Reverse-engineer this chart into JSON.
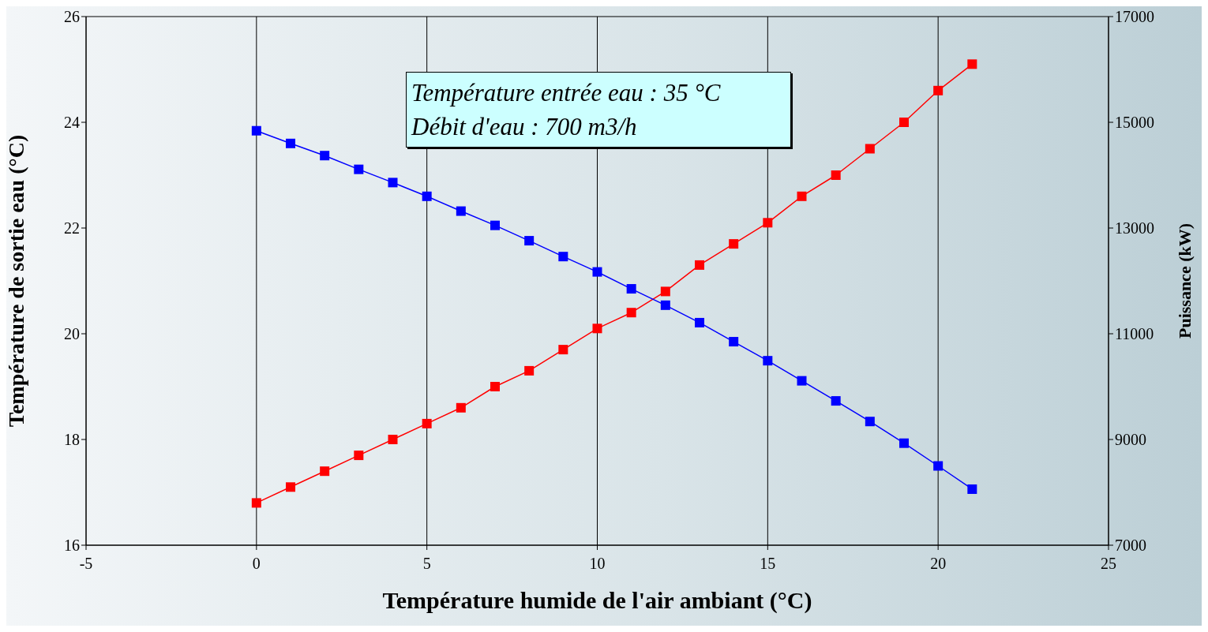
{
  "chart_data": {
    "type": "line",
    "xlabel": "Température humide de l'air ambiant (°C)",
    "ylabel": "Température de sortie eau (°C)",
    "y2label": "Puissance (kW)",
    "annotations": [
      "Température entrée eau : 35 °C",
      "Débit d'eau : 700 m3/h"
    ],
    "x": [
      0,
      1,
      2,
      3,
      4,
      5,
      6,
      7,
      8,
      9,
      10,
      11,
      12,
      13,
      14,
      15,
      16,
      17,
      18,
      19,
      20,
      21
    ],
    "series": [
      {
        "color": "#ff0000",
        "values": [
          16.8,
          17.1,
          17.4,
          17.7,
          18.0,
          18.3,
          18.6,
          19.0,
          19.3,
          19.7,
          20.1,
          20.4,
          20.8,
          21.3,
          21.7,
          22.1,
          22.6,
          23.0,
          23.5,
          24.0,
          24.6,
          25.1
        ]
      },
      {
        "color": "#0000ff",
        "axis": "y2",
        "values": [
          14840,
          14600,
          14370,
          14110,
          13860,
          13600,
          13320,
          13050,
          12760,
          12460,
          12170,
          11850,
          11540,
          11210,
          10850,
          10490,
          10110,
          9730,
          9340,
          8930,
          8500,
          8060
        ]
      }
    ],
    "xlim": [
      -5,
      25
    ],
    "xticks": [
      -5,
      0,
      5,
      10,
      15,
      20,
      25
    ],
    "ylim": [
      16,
      26
    ],
    "yticks": [
      16,
      18,
      20,
      22,
      24,
      26
    ],
    "y2lim": [
      7000,
      17000
    ],
    "y2ticks": [
      7000,
      9000,
      11000,
      13000,
      15000,
      17000
    ],
    "grid": true,
    "legend": false,
    "marker": "square",
    "line_style": "solid"
  }
}
